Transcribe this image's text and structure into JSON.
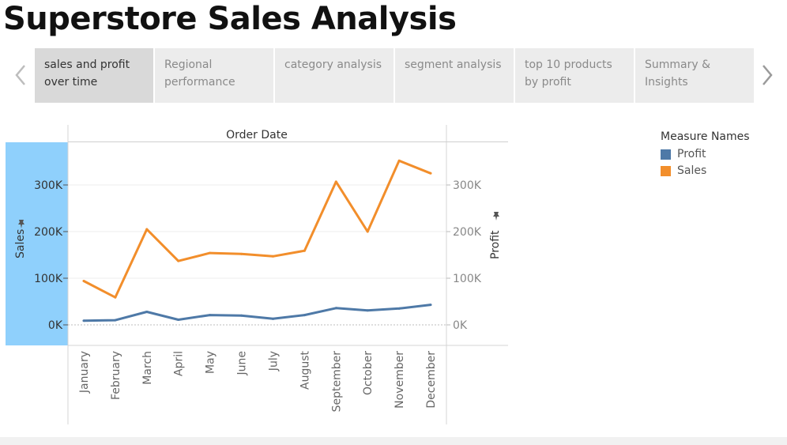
{
  "page": {
    "title": "Superstore Sales Analysis"
  },
  "tabs": [
    {
      "label": "sales and profit over time",
      "active": true
    },
    {
      "label": "Regional performance",
      "active": false
    },
    {
      "label": "category analysis",
      "active": false
    },
    {
      "label": "segment analysis",
      "active": false
    },
    {
      "label": "top 10 products by profit",
      "active": false
    },
    {
      "label": "Summary & Insights",
      "active": false
    }
  ],
  "legend": {
    "title": "Measure Names",
    "items": [
      {
        "label": "Profit",
        "color": "#4e79a7"
      },
      {
        "label": "Sales",
        "color": "#f28e2b"
      }
    ]
  },
  "chart_data": {
    "type": "line",
    "title": "Order Date",
    "xlabel": "",
    "ylabel": "Sales",
    "y2label": "Profit",
    "categories": [
      "January",
      "February",
      "March",
      "April",
      "May",
      "June",
      "July",
      "August",
      "September",
      "October",
      "November",
      "December"
    ],
    "series": [
      {
        "name": "Sales",
        "axis": "left",
        "color": "#f28e2b",
        "values": [
          94000,
          59000,
          205000,
          137000,
          154000,
          152000,
          147000,
          159000,
          307000,
          200000,
          352000,
          325000
        ]
      },
      {
        "name": "Profit",
        "axis": "right",
        "color": "#4e79a7",
        "values": [
          9000,
          10000,
          28000,
          11000,
          21000,
          20000,
          13000,
          21000,
          36000,
          31000,
          35000,
          43000
        ]
      }
    ],
    "yticks": [
      "0K",
      "100K",
      "200K",
      "300K"
    ],
    "ylim": [
      -2000,
      360000
    ],
    "y2lim": [
      -2000,
      360000
    ],
    "grid": true,
    "left_axis_highlight_color": "#8fd0fc",
    "legend_position": "right"
  }
}
